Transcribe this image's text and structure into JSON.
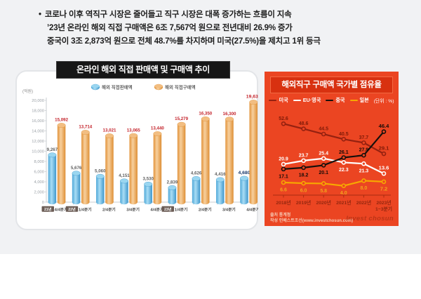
{
  "header": {
    "bullet": "•",
    "lines": [
      "코로나 이후 역직구 시장은 줄어들고 직구 시장은 대폭 증가하는 흐름이 지속",
      "’23년 온라인 해외 직접 구매액은 6조 7,567억 원으로 전년대비 26.9% 증가",
      "중국이 3조 2,873억 원으로 전체 48.7%를 차지하며 미국(27.5%)을 제치고 1위 등극"
    ]
  },
  "chart_data": [
    {
      "type": "bar",
      "title": "온라인 해외 직접 판매액 및 구매액 추이",
      "unit_label": "(억원)",
      "ylabel": "억원",
      "ylim": [
        0,
        20000
      ],
      "ytick_step": 2000,
      "grid": false,
      "legend_position": "top",
      "categories": [
        "4/4분기",
        "1/4분기",
        "2/4분기",
        "3/4분기",
        "4/4분기",
        "1/4분기",
        "2/4분기",
        "3/4분기",
        "4/4분기"
      ],
      "year_badges": [
        {
          "index": 0,
          "label": "21년"
        },
        {
          "index": 1,
          "label": "22년"
        },
        {
          "index": 5,
          "label": "23년"
        }
      ],
      "series": [
        {
          "name": "해외 직접판매액",
          "values": [
            9267,
            5676,
            5060,
            4151,
            3530,
            2839,
            4626,
            4416,
            4680
          ],
          "color": "#56B6E6",
          "body": [
            "#4FA8D8",
            "#A9DDF5",
            "#3E97CC"
          ],
          "top": "#9AD6F0",
          "label_color": "#5f5f5f",
          "last_label_color": "#17376B"
        },
        {
          "name": "해외 직접구매액",
          "values": [
            15092,
            13714,
            13021,
            13065,
            13440,
            15279,
            16350,
            16300,
            19639
          ],
          "color": "#EFA34F",
          "body": [
            "#E2933B",
            "#F7D09E",
            "#DE8F35"
          ],
          "top": "#F2BE82",
          "label_color": "#C4232B",
          "last_label_color": "#C4232B"
        }
      ]
    },
    {
      "type": "line",
      "title": "해외직구 구매액 국가별 점유율",
      "unit_label": "(단위 : %)",
      "background": "#EB4522",
      "grid": false,
      "legend_position": "top",
      "categories": [
        "2018년",
        "2019년",
        "2020년",
        "2021년",
        "2022년",
        "2023년\n1~3분기"
      ],
      "series": [
        {
          "name": "미국",
          "values": [
            52.6,
            48.6,
            44.5,
            40.5,
            37.7,
            29.1
          ],
          "color": "#952110",
          "label_color": "#7E1A08",
          "label_sides": [
            "up",
            "up",
            "up",
            "up",
            "up",
            "up"
          ]
        },
        {
          "name": "EU·영국",
          "values": [
            20.9,
            23.7,
            25.4,
            22.3,
            21.3,
            13.6
          ],
          "color": "#FFFFFF",
          "label_color": "#FFFFFF",
          "label_sides": [
            "up",
            "up",
            "up",
            "down",
            "down",
            "up"
          ]
        },
        {
          "name": "중국",
          "values": [
            17.1,
            18.2,
            20.1,
            26.1,
            27.9,
            46.4
          ],
          "color": "#17100C",
          "label_color": "#140B08",
          "label_sides": [
            "down",
            "down",
            "down",
            "up",
            "up",
            "up"
          ]
        },
        {
          "name": "일본",
          "values": [
            6.6,
            6.0,
            5.8,
            4.0,
            8.0,
            7.2
          ],
          "color": "#F7A800",
          "label_color": "#F2A51C",
          "label_sides": [
            "down",
            "down",
            "down",
            "down",
            "down",
            "down"
          ]
        }
      ],
      "source": "출처 통계청",
      "credit": "작성 인베스트조선(www.investchosun.com)",
      "watermark": "Invest chosun"
    }
  ]
}
